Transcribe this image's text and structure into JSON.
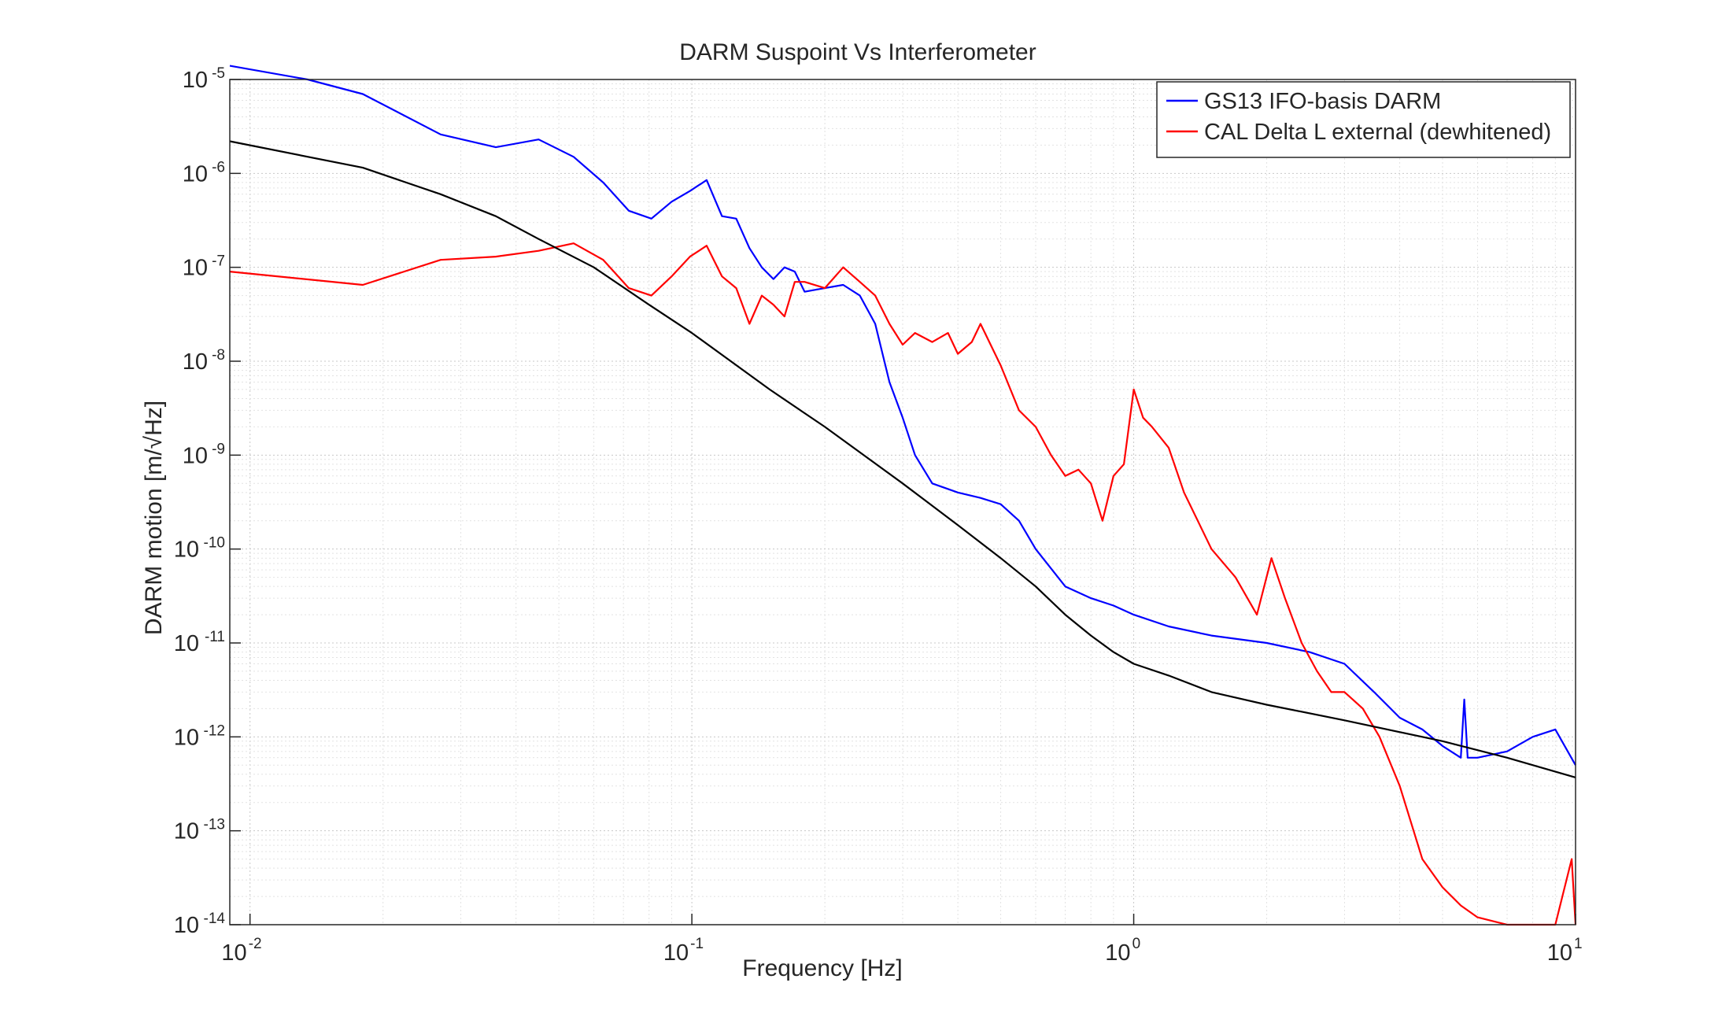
{
  "chart_data": {
    "type": "line",
    "title": "DARM Suspoint Vs Interferometer",
    "xlabel": "Frequency [Hz]",
    "ylabel": "DARM motion [m/√Hz]",
    "xscale": "log",
    "yscale": "log",
    "xlim": [
      0.009,
      10
    ],
    "ylim": [
      1e-14,
      1e-05
    ],
    "grid": true,
    "legend_position": "top-right",
    "x_ticks": [
      {
        "base": "10",
        "exp": "-2",
        "value": 0.01
      },
      {
        "base": "10",
        "exp": "-1",
        "value": 0.1
      },
      {
        "base": "10",
        "exp": "0",
        "value": 1
      },
      {
        "base": "10",
        "exp": "1",
        "value": 10
      }
    ],
    "y_ticks": [
      {
        "base": "10",
        "exp": "-5",
        "value": 1e-05
      },
      {
        "base": "10",
        "exp": "-6",
        "value": 1e-06
      },
      {
        "base": "10",
        "exp": "-7",
        "value": 1e-07
      },
      {
        "base": "10",
        "exp": "-8",
        "value": 1e-08
      },
      {
        "base": "10",
        "exp": "-9",
        "value": 1e-09
      },
      {
        "base": "10",
        "exp": "-10",
        "value": 1e-10
      },
      {
        "base": "10",
        "exp": "-11",
        "value": 1e-11
      },
      {
        "base": "10",
        "exp": "-12",
        "value": 1e-12
      },
      {
        "base": "10",
        "exp": "-13",
        "value": 1e-13
      },
      {
        "base": "10",
        "exp": "-14",
        "value": 1e-14
      }
    ],
    "series": [
      {
        "name": "GS13 IFO-basis DARM",
        "color": "#0000ff",
        "x": [
          0.009,
          0.0135,
          0.018,
          0.027,
          0.036,
          0.045,
          0.054,
          0.063,
          0.072,
          0.081,
          0.09,
          0.099,
          0.108,
          0.117,
          0.126,
          0.135,
          0.144,
          0.153,
          0.162,
          0.171,
          0.18,
          0.2,
          0.22,
          0.24,
          0.26,
          0.28,
          0.3,
          0.32,
          0.35,
          0.4,
          0.45,
          0.5,
          0.55,
          0.6,
          0.7,
          0.8,
          0.9,
          1.0,
          1.2,
          1.5,
          2.0,
          2.5,
          3.0,
          3.5,
          4.0,
          4.5,
          5.0,
          5.5,
          5.6,
          5.7,
          6.0,
          7.0,
          8.0,
          9.0,
          10.0
        ],
        "y": [
          1.4e-05,
          1e-05,
          7e-06,
          2.6e-06,
          1.9e-06,
          2.3e-06,
          1.5e-06,
          8e-07,
          4e-07,
          3.3e-07,
          5e-07,
          6.5e-07,
          8.5e-07,
          3.5e-07,
          3.3e-07,
          1.6e-07,
          1e-07,
          7.5e-08,
          1e-07,
          9e-08,
          5.5e-08,
          6e-08,
          6.5e-08,
          5e-08,
          2.5e-08,
          6e-09,
          2.5e-09,
          1e-09,
          5e-10,
          4e-10,
          3.5e-10,
          3e-10,
          2e-10,
          1e-10,
          4e-11,
          3e-11,
          2.5e-11,
          2e-11,
          1.5e-11,
          1.2e-11,
          1e-11,
          8e-12,
          6e-12,
          3e-12,
          1.6e-12,
          1.2e-12,
          8e-13,
          6e-13,
          2.5e-12,
          6e-13,
          6e-13,
          7e-13,
          1e-12,
          1.2e-12,
          5e-13
        ]
      },
      {
        "name": "CAL Delta L external (dewhitened)",
        "color": "#ff0000",
        "x": [
          0.009,
          0.018,
          0.027,
          0.036,
          0.045,
          0.054,
          0.063,
          0.072,
          0.081,
          0.09,
          0.099,
          0.108,
          0.117,
          0.126,
          0.135,
          0.144,
          0.153,
          0.162,
          0.171,
          0.18,
          0.2,
          0.22,
          0.24,
          0.26,
          0.28,
          0.3,
          0.32,
          0.35,
          0.38,
          0.4,
          0.43,
          0.45,
          0.5,
          0.55,
          0.6,
          0.65,
          0.7,
          0.75,
          0.8,
          0.85,
          0.9,
          0.95,
          1.0,
          1.05,
          1.1,
          1.2,
          1.3,
          1.5,
          1.7,
          1.9,
          2.05,
          2.2,
          2.4,
          2.6,
          2.8,
          3.0,
          3.3,
          3.6,
          4.0,
          4.5,
          5.0,
          5.5,
          6.0,
          7.0,
          8.0,
          9.0,
          9.8,
          10.0
        ],
        "y": [
          9e-08,
          6.5e-08,
          1.2e-07,
          1.3e-07,
          1.5e-07,
          1.8e-07,
          1.2e-07,
          6e-08,
          5e-08,
          8e-08,
          1.3e-07,
          1.7e-07,
          8e-08,
          6e-08,
          2.5e-08,
          5e-08,
          4e-08,
          3e-08,
          7e-08,
          7e-08,
          6e-08,
          1e-07,
          7e-08,
          5e-08,
          2.5e-08,
          1.5e-08,
          2e-08,
          1.6e-08,
          2e-08,
          1.2e-08,
          1.6e-08,
          2.5e-08,
          9e-09,
          3e-09,
          2e-09,
          1e-09,
          6e-10,
          7e-10,
          5e-10,
          2e-10,
          6e-10,
          8e-10,
          5e-09,
          2.5e-09,
          2e-09,
          1.2e-09,
          4e-10,
          1e-10,
          5e-11,
          2e-11,
          8e-11,
          3e-11,
          1e-11,
          5e-12,
          3e-12,
          3e-12,
          2e-12,
          1e-12,
          3e-13,
          5e-14,
          2.5e-14,
          1.6e-14,
          1.2e-14,
          1e-14,
          1e-14,
          1e-14,
          5e-14,
          1e-14
        ]
      },
      {
        "name": "",
        "color": "#000000",
        "x": [
          0.009,
          0.018,
          0.027,
          0.036,
          0.045,
          0.06,
          0.08,
          0.1,
          0.15,
          0.2,
          0.3,
          0.4,
          0.5,
          0.6,
          0.7,
          0.8,
          0.9,
          1.0,
          1.2,
          1.5,
          2.0,
          3.0,
          5.0,
          7.0,
          10.0
        ],
        "y": [
          2.2e-06,
          1.15e-06,
          6e-07,
          3.5e-07,
          2e-07,
          1e-07,
          4e-08,
          2e-08,
          5e-09,
          2e-09,
          5e-10,
          1.8e-10,
          8e-11,
          4e-11,
          2e-11,
          1.2e-11,
          8e-12,
          6e-12,
          4.5e-12,
          3e-12,
          2.2e-12,
          1.5e-12,
          9e-13,
          6e-13,
          3.7e-13
        ]
      }
    ]
  }
}
